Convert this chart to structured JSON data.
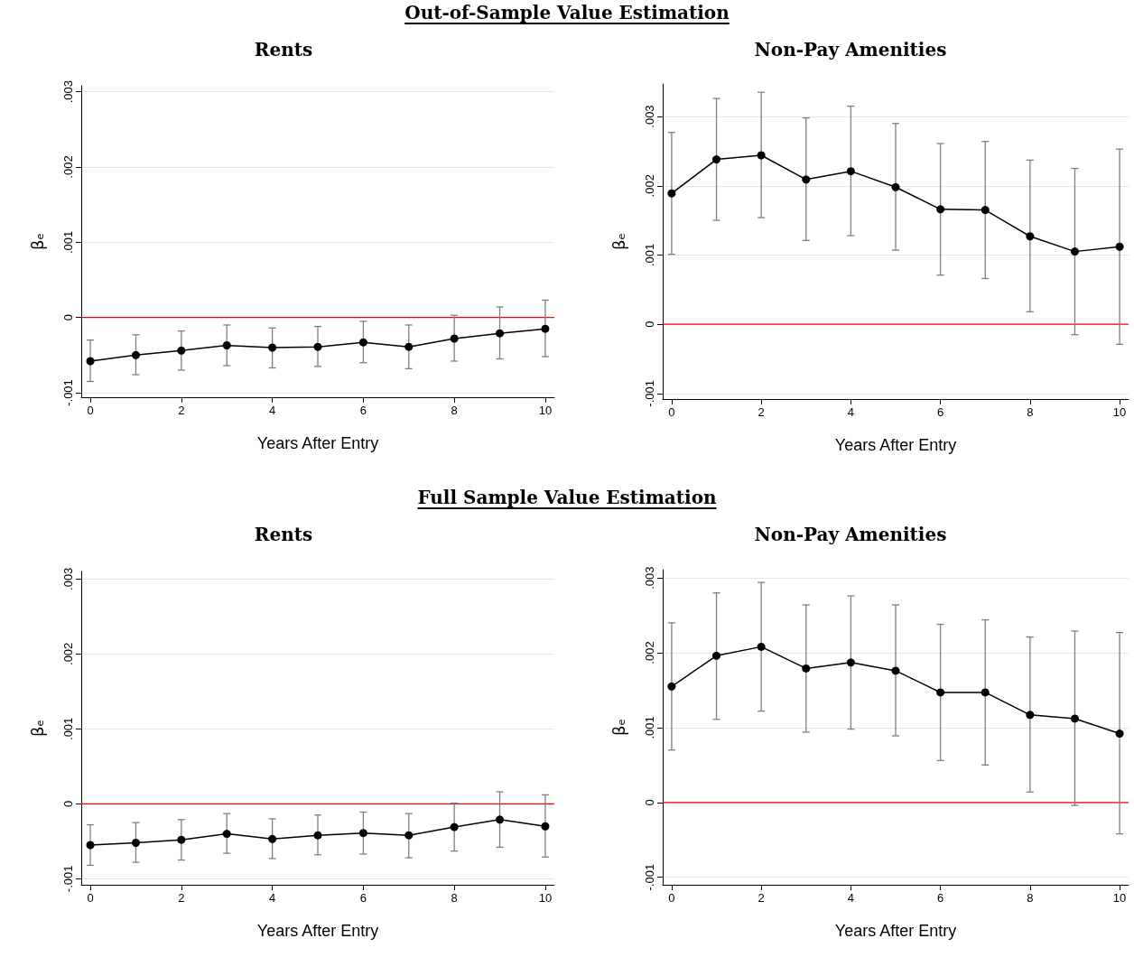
{
  "chart_data": [
    {
      "type": "line",
      "title": "Rents",
      "annotations": [
        "Out-of-Sample Value Estimation"
      ],
      "xlabel": "Years After Entry",
      "ylabel": "βₑ",
      "x": [
        0,
        1,
        2,
        3,
        4,
        5,
        6,
        7,
        8,
        9,
        10
      ],
      "series": [
        {
          "color": "#000000",
          "values": [
            -0.00058,
            -0.0005,
            -0.00044,
            -0.00037,
            -0.0004,
            -0.00039,
            -0.00033,
            -0.00039,
            -0.00028,
            -0.00021,
            -0.00015
          ],
          "errors": [
            [
              -0.00085,
              -0.0003
            ],
            [
              -0.00076,
              -0.00023
            ],
            [
              -0.0007,
              -0.00018
            ],
            [
              -0.00064,
              -0.0001
            ],
            [
              -0.00067,
              -0.00014
            ],
            [
              -0.00065,
              -0.00012
            ],
            [
              -0.0006,
              -5e-05
            ],
            [
              -0.00068,
              -0.0001
            ],
            [
              -0.00058,
              3e-05
            ],
            [
              -0.00055,
              0.00014
            ],
            [
              -0.00052,
              0.00023
            ]
          ]
        }
      ],
      "xlim": [
        -0.2,
        10.2
      ],
      "xticks": [
        0,
        2,
        4,
        6,
        8,
        10
      ],
      "ylim": [
        -0.00106,
        0.00308
      ],
      "yticks": [
        {
          "value": -0.001,
          "label": "-.001"
        },
        {
          "value": 0,
          "label": "0"
        },
        {
          "value": 0.001,
          "label": ".001"
        },
        {
          "value": 0.002,
          "label": ".002"
        },
        {
          "value": 0.003,
          "label": ".003"
        }
      ],
      "ref_lines": [
        {
          "axis": "y",
          "value": 0,
          "color": "#ff0000"
        }
      ],
      "grid": "y",
      "marker": "circle"
    },
    {
      "type": "line",
      "title": "Non-Pay Amenities",
      "xlabel": "Years After Entry",
      "ylabel": "βₑ",
      "x": [
        0,
        1,
        2,
        3,
        4,
        5,
        6,
        7,
        8,
        9,
        10
      ],
      "series": [
        {
          "color": "#000000",
          "values": [
            0.00189,
            0.00238,
            0.00244,
            0.00209,
            0.00221,
            0.00198,
            0.00166,
            0.00165,
            0.00127,
            0.00105,
            0.00112
          ],
          "errors": [
            [
              0.00101,
              0.00277
            ],
            [
              0.0015,
              0.00326
            ],
            [
              0.00154,
              0.00335
            ],
            [
              0.00121,
              0.00298
            ],
            [
              0.00128,
              0.00315
            ],
            [
              0.00107,
              0.0029
            ],
            [
              0.00071,
              0.00261
            ],
            [
              0.00066,
              0.00264
            ],
            [
              0.00018,
              0.00237
            ],
            [
              -0.00015,
              0.00225
            ],
            [
              -0.00029,
              0.00253
            ]
          ]
        }
      ],
      "xlim": [
        -0.2,
        10.2
      ],
      "xticks": [
        0,
        2,
        4,
        6,
        8,
        10
      ],
      "ylim": [
        -0.00108,
        0.00347
      ],
      "yticks": [
        {
          "value": -0.001,
          "label": "-.001"
        },
        {
          "value": 0,
          "label": "0"
        },
        {
          "value": 0.001,
          "label": ".001"
        },
        {
          "value": 0.002,
          "label": ".002"
        },
        {
          "value": 0.003,
          "label": ".003"
        }
      ],
      "ref_lines": [
        {
          "axis": "y",
          "value": 0,
          "color": "#ff0000"
        }
      ],
      "grid": "y",
      "marker": "circle"
    },
    {
      "type": "line",
      "title": "Rents",
      "annotations": [
        "Full Sample Value Estimation"
      ],
      "xlabel": "Years After Entry",
      "ylabel": "βₑ",
      "x": [
        0,
        1,
        2,
        3,
        4,
        5,
        6,
        7,
        8,
        9,
        10
      ],
      "series": [
        {
          "color": "#000000",
          "values": [
            -0.00055,
            -0.00052,
            -0.00048,
            -0.0004,
            -0.00047,
            -0.00042,
            -0.00039,
            -0.00042,
            -0.00031,
            -0.00021,
            -0.0003
          ],
          "errors": [
            [
              -0.00082,
              -0.00028
            ],
            [
              -0.00078,
              -0.00025
            ],
            [
              -0.00075,
              -0.00021
            ],
            [
              -0.00066,
              -0.00013
            ],
            [
              -0.00073,
              -0.0002
            ],
            [
              -0.00068,
              -0.00015
            ],
            [
              -0.00067,
              -0.00011
            ],
            [
              -0.00072,
              -0.00013
            ],
            [
              -0.00063,
              1e-05
            ],
            [
              -0.00058,
              0.00016
            ],
            [
              -0.00071,
              0.00012
            ]
          ]
        }
      ],
      "xlim": [
        -0.2,
        10.2
      ],
      "xticks": [
        0,
        2,
        4,
        6,
        8,
        10
      ],
      "ylim": [
        -0.00108,
        0.0031
      ],
      "yticks": [
        {
          "value": -0.001,
          "label": "-.001"
        },
        {
          "value": 0,
          "label": "0"
        },
        {
          "value": 0.001,
          "label": ".001"
        },
        {
          "value": 0.002,
          "label": ".002"
        },
        {
          "value": 0.003,
          "label": ".003"
        }
      ],
      "ref_lines": [
        {
          "axis": "y",
          "value": 0,
          "color": "#ff0000"
        }
      ],
      "grid": "y",
      "marker": "circle"
    },
    {
      "type": "line",
      "title": "Non-Pay Amenities",
      "xlabel": "Years After Entry",
      "ylabel": "βₑ",
      "x": [
        0,
        1,
        2,
        3,
        4,
        5,
        6,
        7,
        8,
        9,
        10
      ],
      "series": [
        {
          "color": "#000000",
          "values": [
            0.00155,
            0.00196,
            0.00208,
            0.00179,
            0.00187,
            0.00176,
            0.00147,
            0.00147,
            0.00117,
            0.00112,
            0.00092
          ],
          "errors": [
            [
              0.0007,
              0.0024
            ],
            [
              0.00111,
              0.0028
            ],
            [
              0.00122,
              0.00294
            ],
            [
              0.00094,
              0.00264
            ],
            [
              0.00098,
              0.00276
            ],
            [
              0.00089,
              0.00264
            ],
            [
              0.00056,
              0.00238
            ],
            [
              0.0005,
              0.00244
            ],
            [
              0.00014,
              0.00221
            ],
            [
              -4e-05,
              0.00229
            ],
            [
              -0.00042,
              0.00227
            ]
          ]
        }
      ],
      "xlim": [
        -0.2,
        10.2
      ],
      "xticks": [
        0,
        2,
        4,
        6,
        8,
        10
      ],
      "ylim": [
        -0.0011,
        0.00311
      ],
      "yticks": [
        {
          "value": -0.001,
          "label": "-.001"
        },
        {
          "value": 0,
          "label": "0"
        },
        {
          "value": 0.001,
          "label": ".001"
        },
        {
          "value": 0.002,
          "label": ".002"
        },
        {
          "value": 0.003,
          "label": ".003"
        }
      ],
      "ref_lines": [
        {
          "axis": "y",
          "value": 0,
          "color": "#ff0000"
        }
      ],
      "grid": "y",
      "marker": "circle"
    }
  ]
}
